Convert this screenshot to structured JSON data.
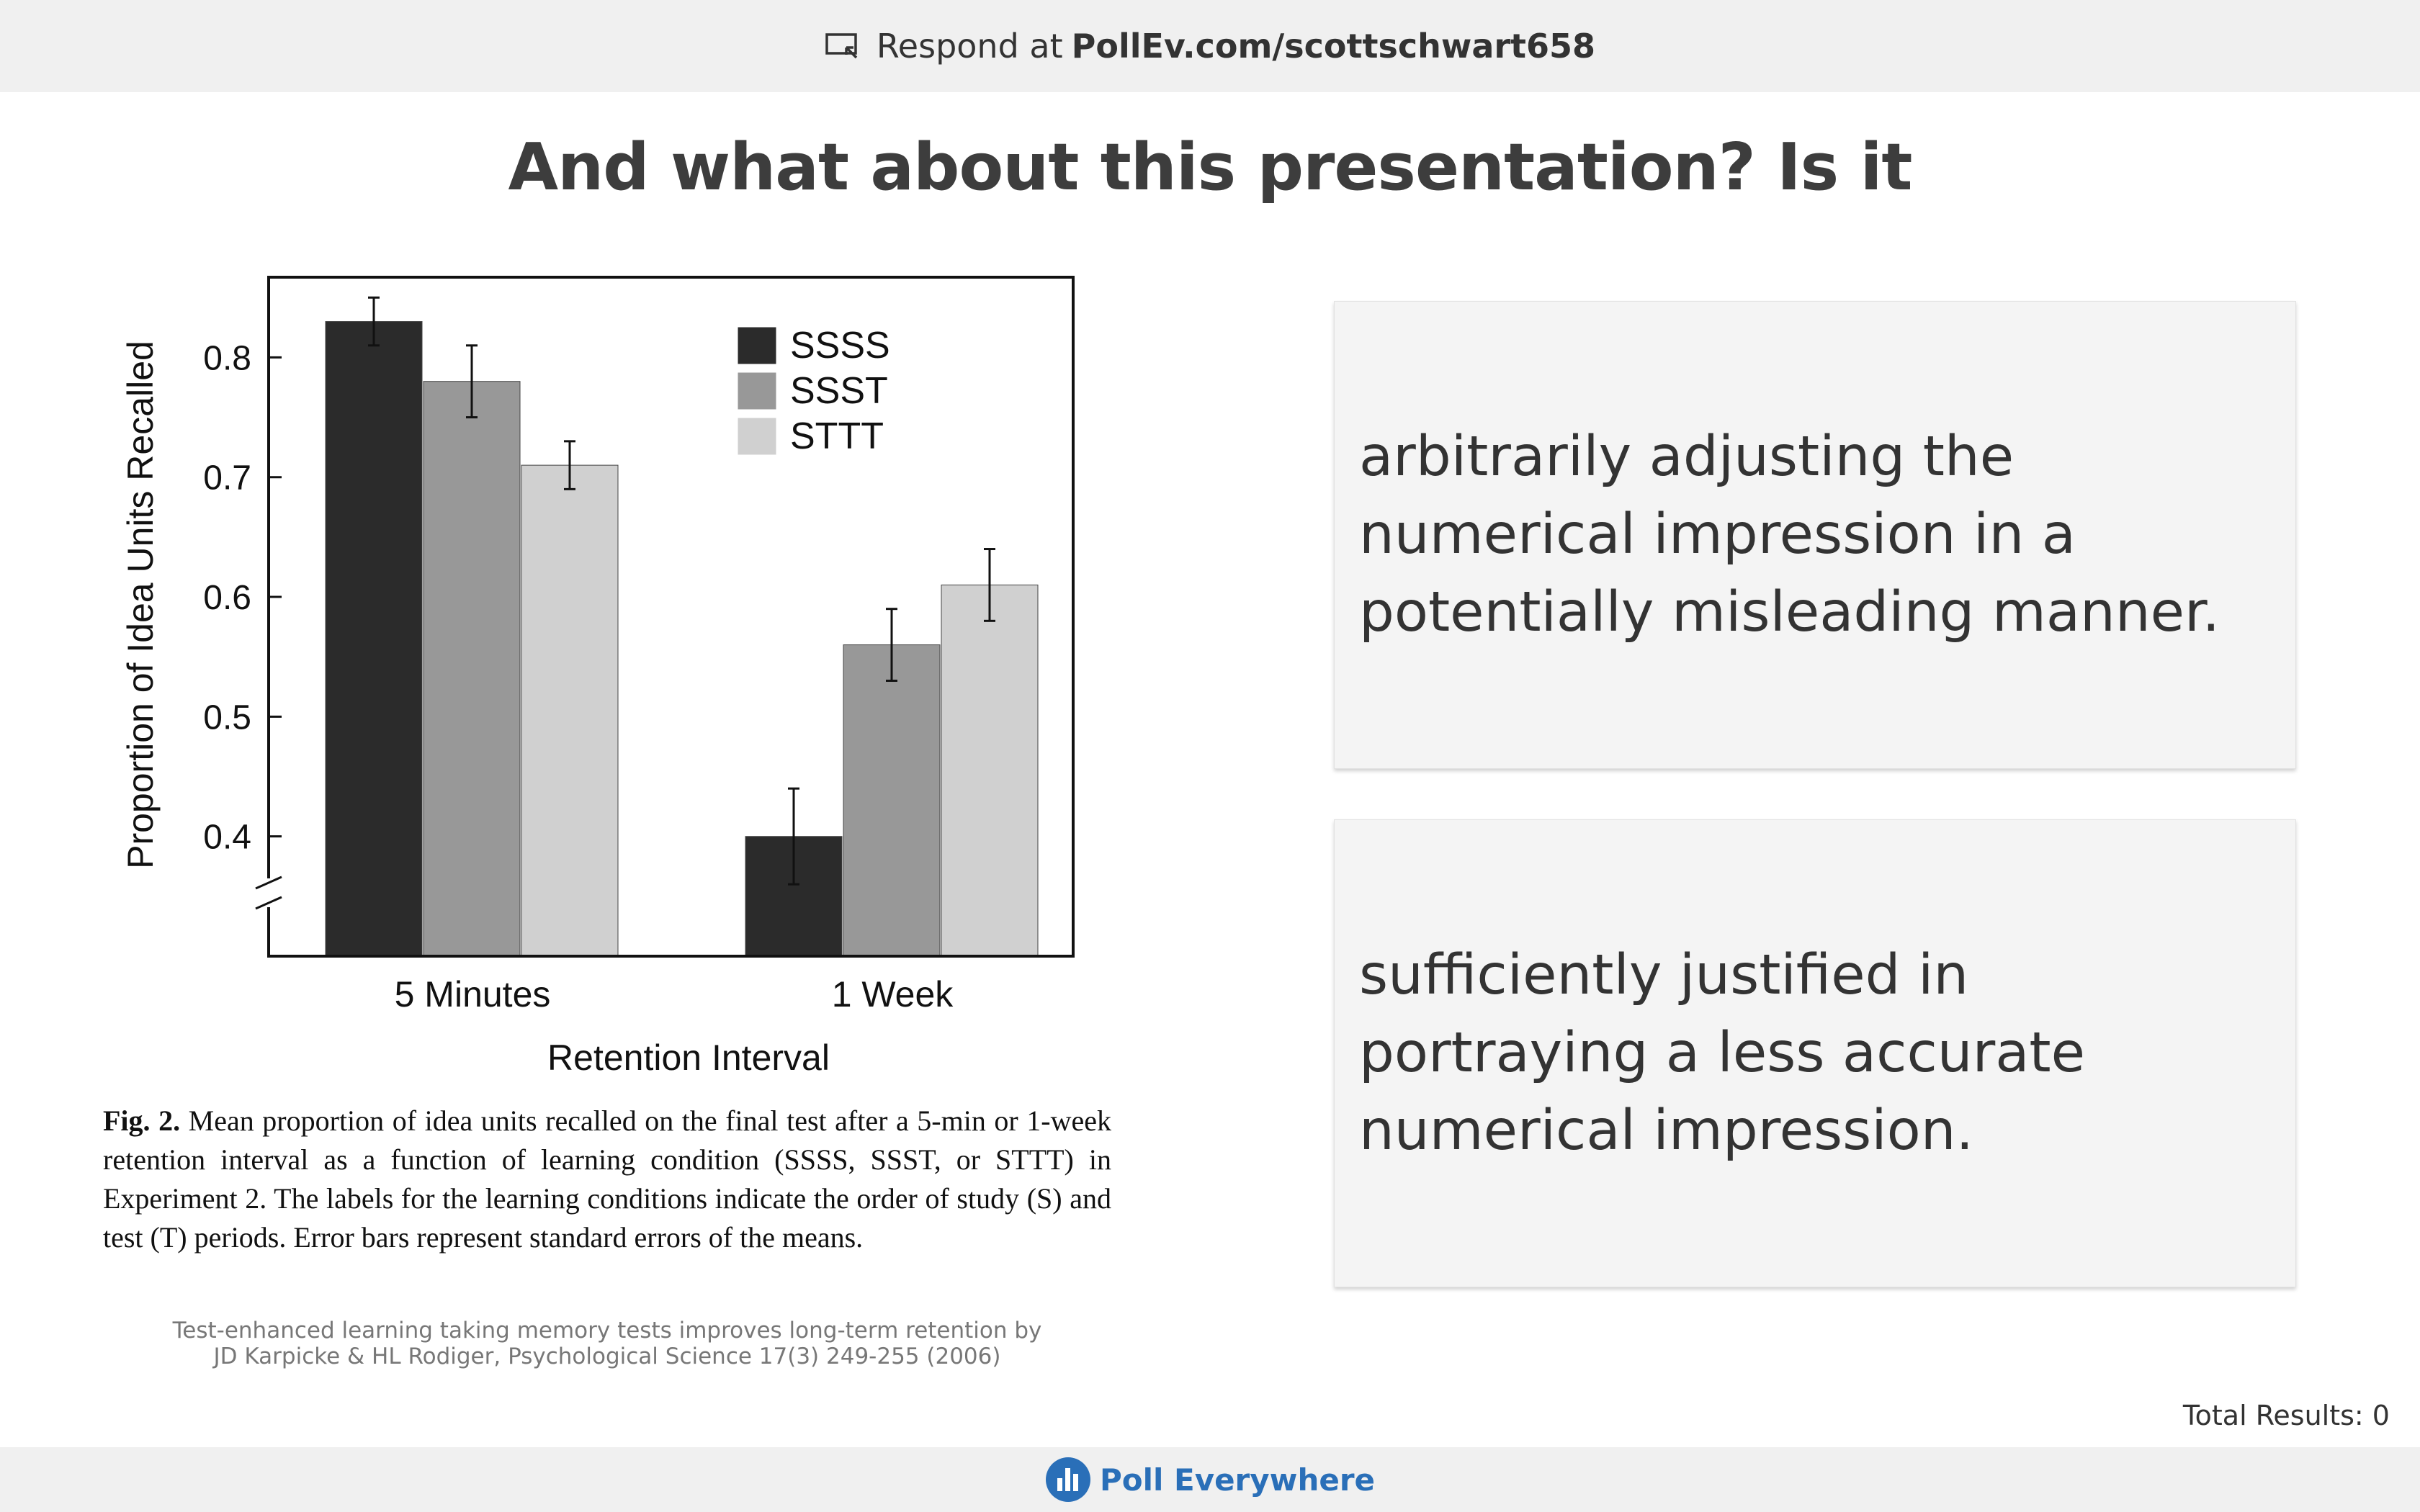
{
  "header": {
    "respond_prefix": "Respond at",
    "respond_url": "PollEv.com/scottschwart658",
    "icon": "presentation-screen-icon"
  },
  "question": {
    "title": "And what about this presentation? Is it"
  },
  "figure": {
    "caption_label": "Fig. 2.",
    "caption_text": "Mean proportion of idea units recalled on the final test after a 5-min or 1-week retention interval as a function of learning condition (SSSS, SSST, or STTT) in Experiment 2. The labels for the learning conditions indicate the order of study (S) and test (T) periods. Error bars represent standard errors of the means.",
    "credit_line1": "Test-enhanced learning taking memory tests improves long-term retention by",
    "credit_line2": "JD Karpicke & HL Rodiger, Psychological Science 17(3) 249-255 (2006)"
  },
  "chart_data": {
    "type": "bar",
    "categories": [
      "5 Minutes",
      "1 Week"
    ],
    "series": [
      {
        "name": "SSSS",
        "values": [
          0.83,
          0.4
        ],
        "errors": [
          0.02,
          0.04
        ],
        "color": "#2b2b2b"
      },
      {
        "name": "SSST",
        "values": [
          0.78,
          0.56
        ],
        "errors": [
          0.03,
          0.03
        ],
        "color": "#989898"
      },
      {
        "name": "STTT",
        "values": [
          0.71,
          0.61
        ],
        "errors": [
          0.02,
          0.03
        ],
        "color": "#d0d0d0"
      }
    ],
    "xlabel": "Retention Interval",
    "ylabel": "Proportion of Idea Units Recalled",
    "yticks": [
      0.4,
      0.5,
      0.6,
      0.7,
      0.8
    ],
    "ylim": [
      0.3,
      0.867
    ],
    "axis_break": true,
    "legend_position": "top-right",
    "grid": false
  },
  "options": [
    {
      "label": "arbitrarily adjusting the numerical impression in a potentially misleading manner."
    },
    {
      "label": "sufficiently justified in portraying a less accurate numerical impression."
    }
  ],
  "results": {
    "total_label": "Total Results: 0"
  },
  "footer": {
    "brand": "Poll Everywhere",
    "brand_color": "#2a6fb8",
    "icon": "poll-everywhere-logo-icon"
  }
}
